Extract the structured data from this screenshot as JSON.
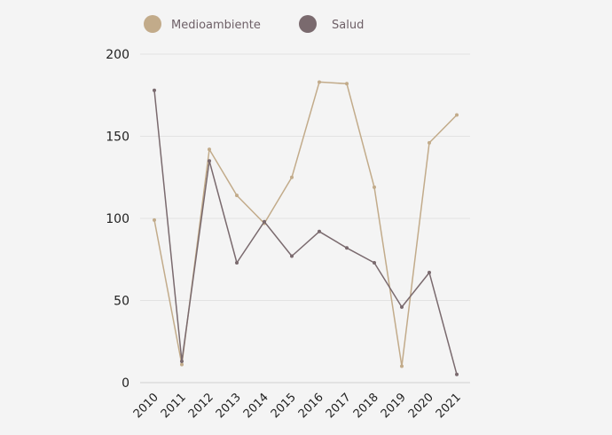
{
  "chart_data": {
    "type": "line",
    "title": "",
    "xlabel": "",
    "ylabel": "",
    "ylim": [
      0,
      200
    ],
    "yticks": [
      0,
      50,
      100,
      150,
      200
    ],
    "grid": true,
    "legend_position": "top-left",
    "categories": [
      "2010",
      "2011",
      "2012",
      "2013",
      "2014",
      "2015",
      "2016",
      "2017",
      "2018",
      "2019",
      "2020",
      "2021"
    ],
    "series": [
      {
        "name": "Medioambiente",
        "color": "#c2ab8a",
        "values": [
          99,
          11,
          142,
          114,
          97,
          125,
          183,
          182,
          119,
          10,
          146,
          163
        ]
      },
      {
        "name": "Salud",
        "color": "#7a6a6e",
        "values": [
          178,
          13,
          135,
          73,
          98,
          77,
          92,
          82,
          73,
          46,
          67,
          5
        ]
      }
    ]
  }
}
